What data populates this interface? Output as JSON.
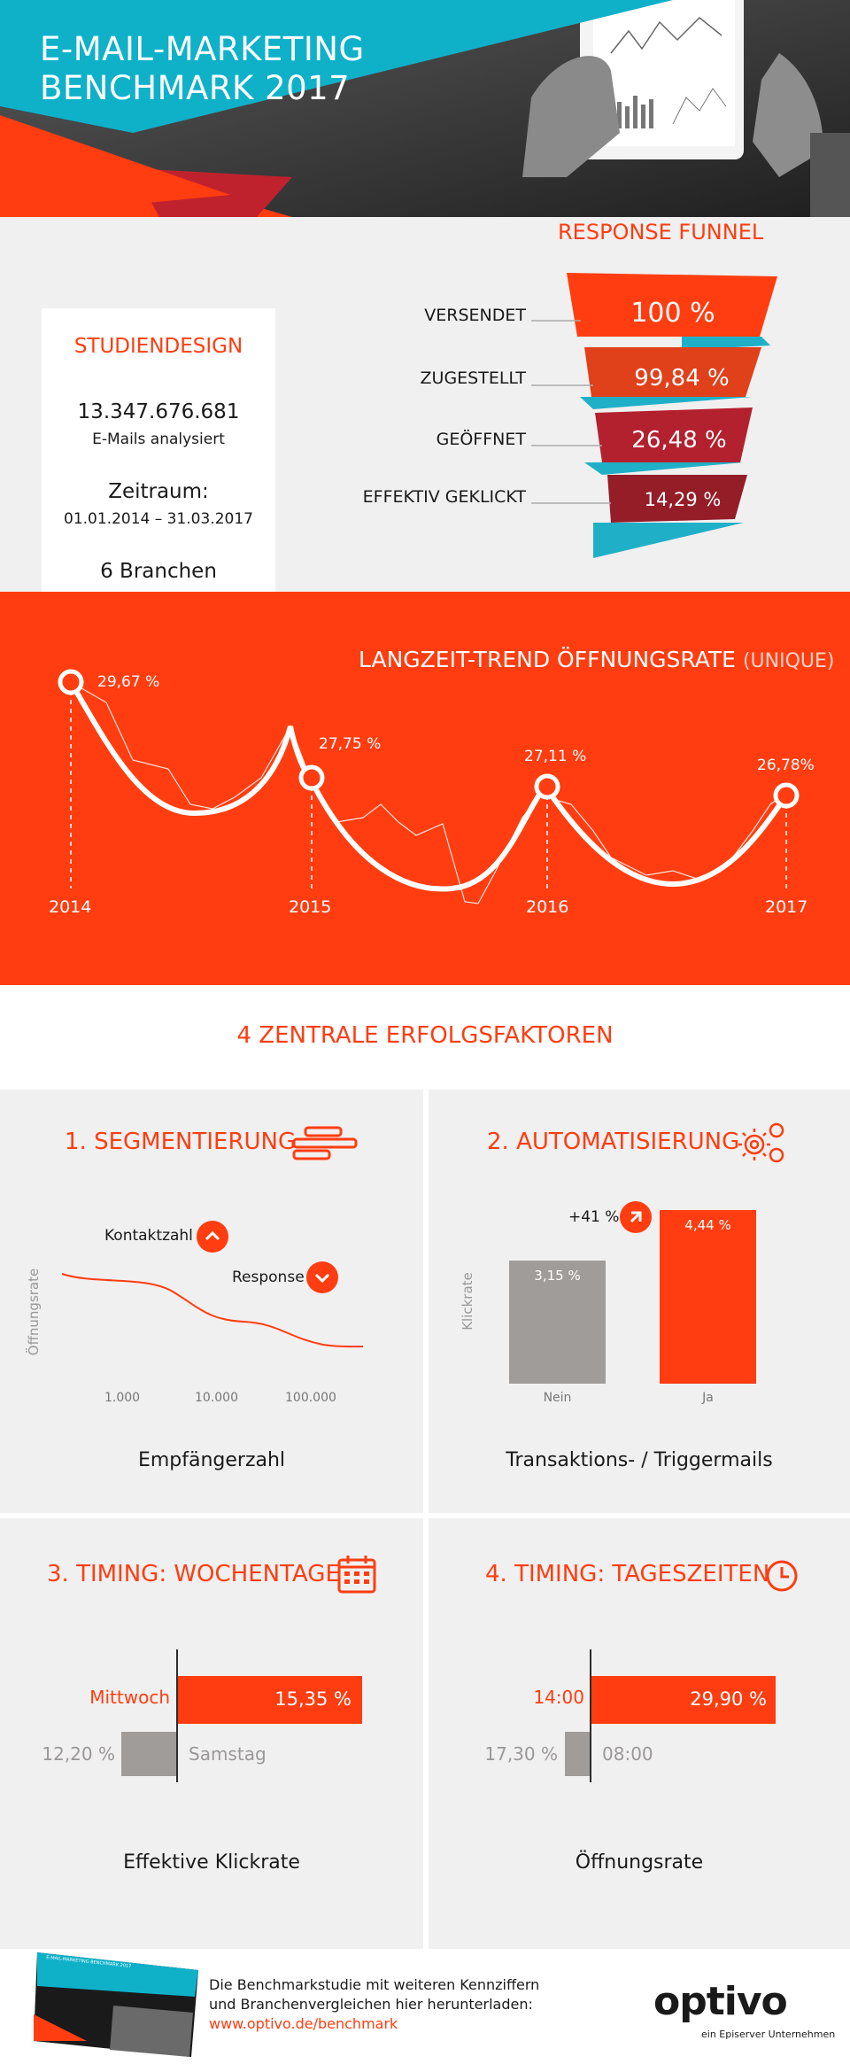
{
  "header": {
    "title_line1": "E-MAIL-MARKETING",
    "title_line2": "BENCHMARK 2017"
  },
  "studiendesign": {
    "heading": "STUDIENDESIGN",
    "emails_count": "13.347.676.681",
    "emails_label": "E-Mails analysiert",
    "period_heading": "Zeitraum:",
    "period_value": "01.01.2014 – 31.03.2017",
    "branches": "6 Branchen"
  },
  "funnel": {
    "heading": "RESPONSE FUNNEL",
    "stages": [
      {
        "label": "VERSENDET",
        "value": "100 %"
      },
      {
        "label": "ZUGESTELLT",
        "value": "99,84 %"
      },
      {
        "label": "GEÖFFNET",
        "value": "26,48 %"
      },
      {
        "label": "EFFEKTIV GEKLICKT",
        "value": "14,29 %"
      }
    ],
    "colors": [
      "#ff3d10",
      "#e0401a",
      "#b3212e",
      "#951d27"
    ],
    "ribbon_color": "#1fb0c8"
  },
  "trend": {
    "heading": "LANGZEIT-TREND ÖFFNUNGSRATE",
    "heading_suffix": "(UNIQUE)",
    "years": [
      "2014",
      "2015",
      "2016",
      "2017"
    ],
    "values": [
      "29,67 %",
      "27,75 %",
      "27,11 %",
      "26,78%"
    ]
  },
  "chart_data": {
    "type": "line",
    "title": "LANGZEIT-TREND ÖFFNUNGSRATE (UNIQUE)",
    "categories": [
      "2014",
      "2015",
      "2016",
      "2017"
    ],
    "values": [
      29.67,
      27.75,
      27.11,
      26.78
    ]
  },
  "factors": {
    "heading": "4 ZENTRALE ERFOLGSFAKTOREN",
    "segmentierung": {
      "title": "1. SEGMENTIERUNG",
      "ylabel": "Öffnungsrate",
      "kontaktzahl": "Kontaktzahl",
      "response": "Response",
      "ticks": [
        "1.000",
        "10.000",
        "100.000"
      ],
      "caption": "Empfängerzahl"
    },
    "automatisierung": {
      "title": "2. AUTOMATISIERUNG",
      "ylabel": "Klickrate",
      "lift": "+41 %",
      "bar_nein_value": "3,15 %",
      "bar_ja_value": "4,44 %",
      "bar_nein_label": "Nein",
      "bar_ja_label": "Ja",
      "nein_fraction": 0.709,
      "caption": "Transaktions- / Triggermails"
    },
    "wochentage": {
      "title": "3. TIMING: WOCHENTAGE",
      "top_label": "Mittwoch",
      "top_value": "15,35 %",
      "bottom_label": "Samstag",
      "bottom_value": "12,20 %",
      "caption": "Effektive Klickrate"
    },
    "tageszeiten": {
      "title": "4. TIMING: TAGESZEITEN",
      "top_label": "14:00",
      "top_value": "29,90 %",
      "bottom_label": "08:00",
      "bottom_value": "17,30 %",
      "caption": "Öffnungsrate"
    }
  },
  "footer": {
    "line1": "Die Benchmarkstudie mit weiteren Kennziffern",
    "line2": "und Branchenvergleichen hier herunterladen:",
    "link": "www.optivo.de/benchmark",
    "brand": "optivo",
    "brand_sub": "ein Episerver Unternehmen",
    "cover_title": "E-MAIL-MARKETING BENCHMARK 2017"
  }
}
